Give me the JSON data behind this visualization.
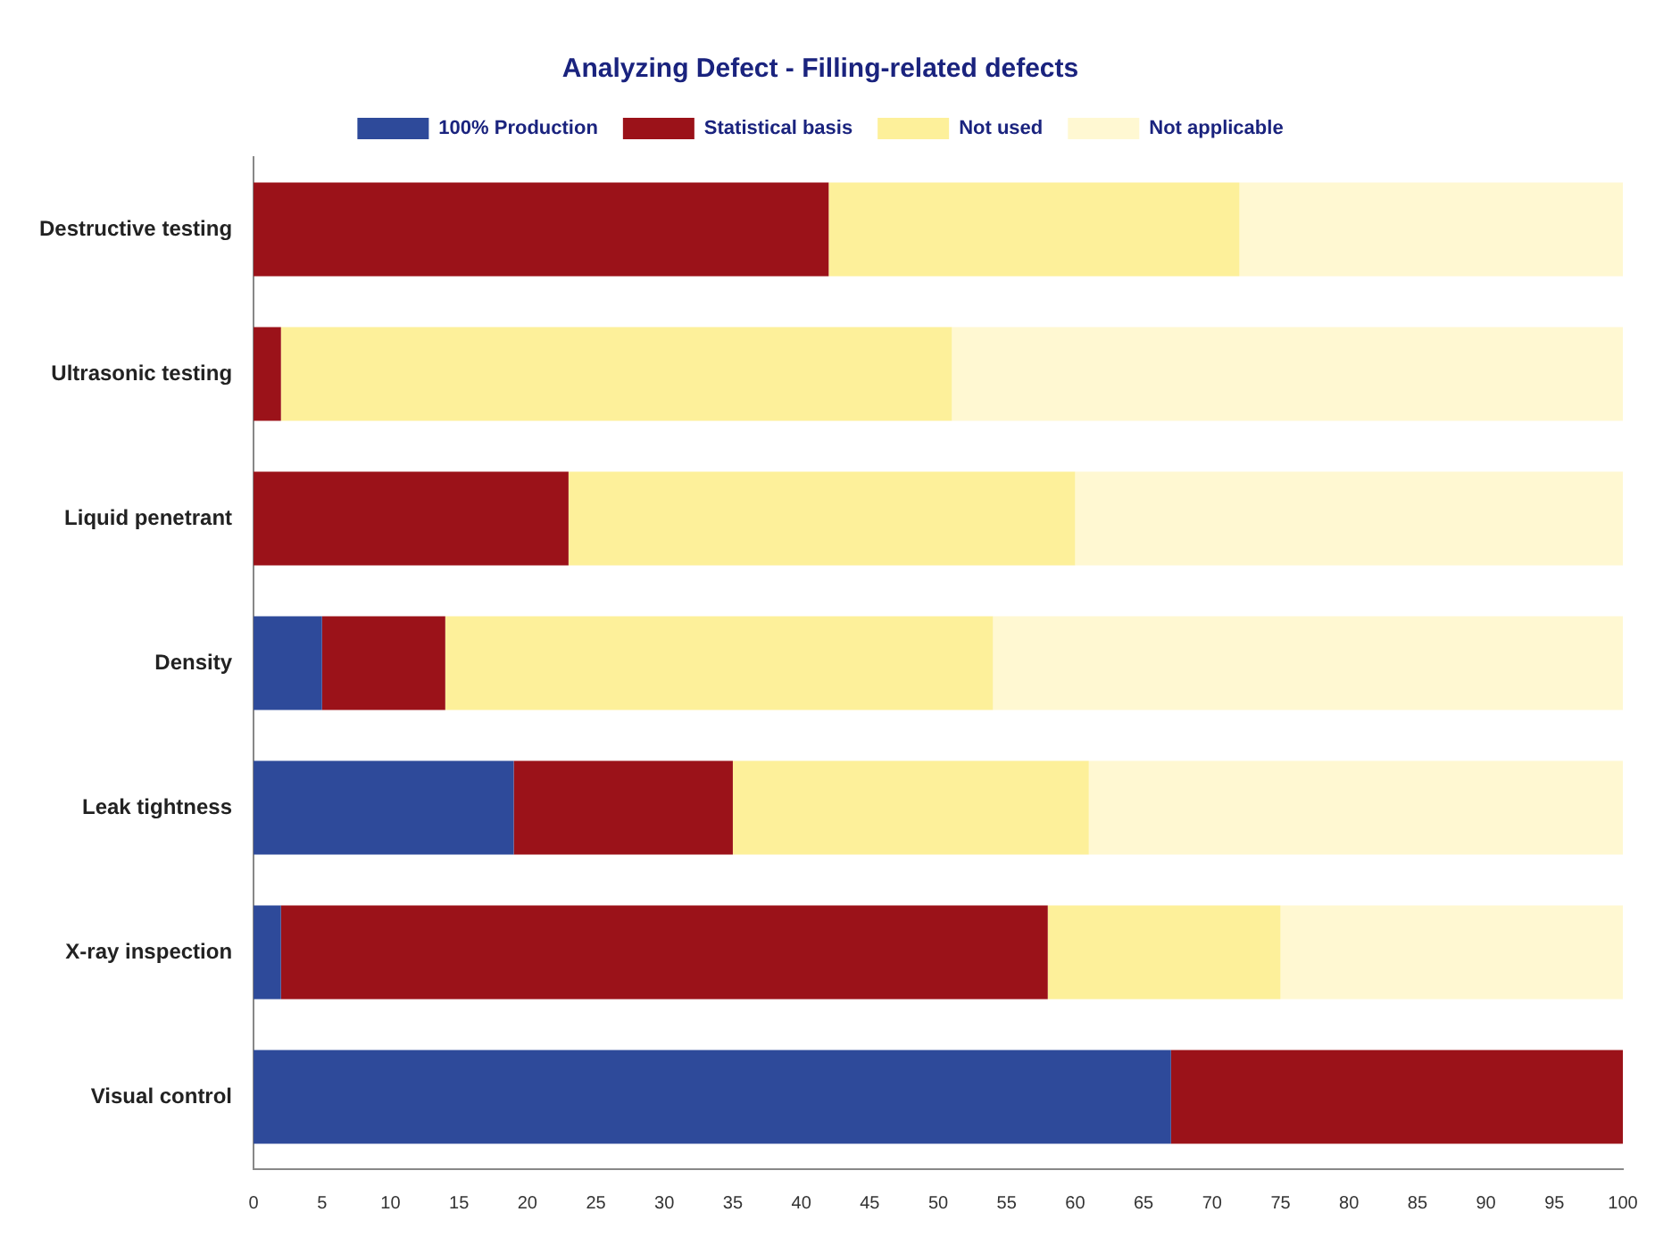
{
  "chart_data": {
    "type": "bar",
    "orientation": "horizontal",
    "stacked": true,
    "title": "Analyzing Defect - Filling-related defects",
    "categories": [
      "Destructive testing",
      "Ultrasonic testing",
      "Liquid penetrant",
      "Density",
      "Leak tightness",
      "X-ray inspection",
      "Visual control"
    ],
    "series": [
      {
        "name": "100% Production",
        "color": "#2e4a9a",
        "values": [
          0,
          0,
          0,
          5,
          19,
          2,
          67
        ]
      },
      {
        "name": "Statistical basis",
        "color": "#9b1219",
        "values": [
          42,
          2,
          23,
          9,
          16,
          56,
          33
        ]
      },
      {
        "name": "Not used",
        "color": "#fdf09a",
        "values": [
          30,
          49,
          37,
          40,
          26,
          17,
          0
        ]
      },
      {
        "name": "Not applicable",
        "color": "#fff8d2",
        "values": [
          28,
          49,
          40,
          46,
          39,
          25,
          0
        ]
      }
    ],
    "xlim": [
      0,
      100
    ],
    "xticks": [
      0,
      5,
      10,
      15,
      20,
      25,
      30,
      35,
      40,
      45,
      50,
      55,
      60,
      65,
      70,
      75,
      80,
      85,
      90,
      95,
      100
    ],
    "grid": false,
    "legend": "top"
  }
}
